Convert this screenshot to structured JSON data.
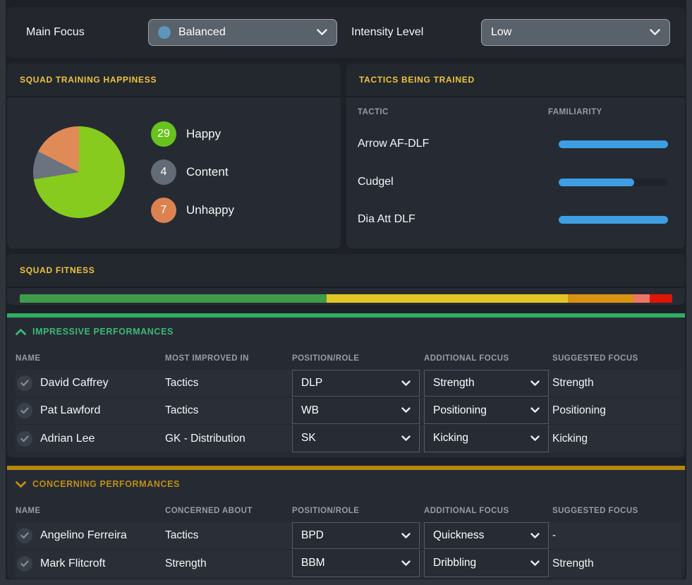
{
  "topbar": {
    "main_focus_label": "Main Focus",
    "main_focus_value": "Balanced",
    "main_focus_dot_color": "#5e95ba",
    "intensity_label": "Intensity Level",
    "intensity_value": "Low"
  },
  "happiness": {
    "title": "SQUAD TRAINING HAPPINESS",
    "legend": [
      {
        "count": 29,
        "label": "Happy",
        "dot_color": "#68c31d",
        "pie_color": "#86cb1e"
      },
      {
        "count": 4,
        "label": "Content",
        "dot_color": "#636b76",
        "pie_color": "#6b7380"
      },
      {
        "count": 7,
        "label": "Unhappy",
        "dot_color": "#dc8250",
        "pie_color": "#e08a58"
      }
    ]
  },
  "tactics": {
    "title": "TACTICS BEING TRAINED",
    "col_tactic": "TACTIC",
    "col_familiarity": "FAMILIARITY",
    "rows": [
      {
        "name": "Arrow AF-DLF",
        "familiarity_pct": 100
      },
      {
        "name": "Cudgel",
        "familiarity_pct": 69
      },
      {
        "name": "Dia Att DLF",
        "familiarity_pct": 100
      }
    ],
    "bar_color": "#3d9ee2"
  },
  "fitness": {
    "title": "SQUAD FITNESS",
    "segments": [
      {
        "color": "#3f9b47",
        "pct": 47
      },
      {
        "color": "#e2c626",
        "pct": 37
      },
      {
        "color": "#d99212",
        "pct": 10
      },
      {
        "color": "#ec7565",
        "pct": 2.5
      },
      {
        "color": "#e01506",
        "pct": 3.5
      }
    ]
  },
  "impressive": {
    "title": "IMPRESSIVE PERFORMANCES",
    "accent_color": "#2fae63",
    "columns": {
      "name": "NAME",
      "reason": "MOST IMPROVED IN",
      "position_role": "POSITION/ROLE",
      "additional_focus": "ADDITIONAL FOCUS",
      "suggested_focus": "SUGGESTED FOCUS"
    },
    "rows": [
      {
        "name": "David Caffrey",
        "reason": "Tactics",
        "position_role": "DLP",
        "additional_focus": "Strength",
        "suggested_focus": "Strength"
      },
      {
        "name": "Pat Lawford",
        "reason": "Tactics",
        "position_role": "WB",
        "additional_focus": "Positioning",
        "suggested_focus": "Positioning"
      },
      {
        "name": "Adrian Lee",
        "reason": "GK - Distribution",
        "position_role": "SK",
        "additional_focus": "Kicking",
        "suggested_focus": "Kicking"
      }
    ]
  },
  "concerning": {
    "title": "CONCERNING PERFORMANCES",
    "accent_color": "#b5860d",
    "columns": {
      "name": "NAME",
      "reason": "CONCERNED ABOUT",
      "position_role": "POSITION/ROLE",
      "additional_focus": "ADDITIONAL FOCUS",
      "suggested_focus": "SUGGESTED FOCUS"
    },
    "rows": [
      {
        "name": "Angelino Ferreira",
        "reason": "Tactics",
        "position_role": "BPD",
        "additional_focus": "Quickness",
        "suggested_focus": "-"
      },
      {
        "name": "Mark Flitcroft",
        "reason": "Strength",
        "position_role": "BBM",
        "additional_focus": "Dribbling",
        "suggested_focus": "Strength"
      }
    ]
  }
}
